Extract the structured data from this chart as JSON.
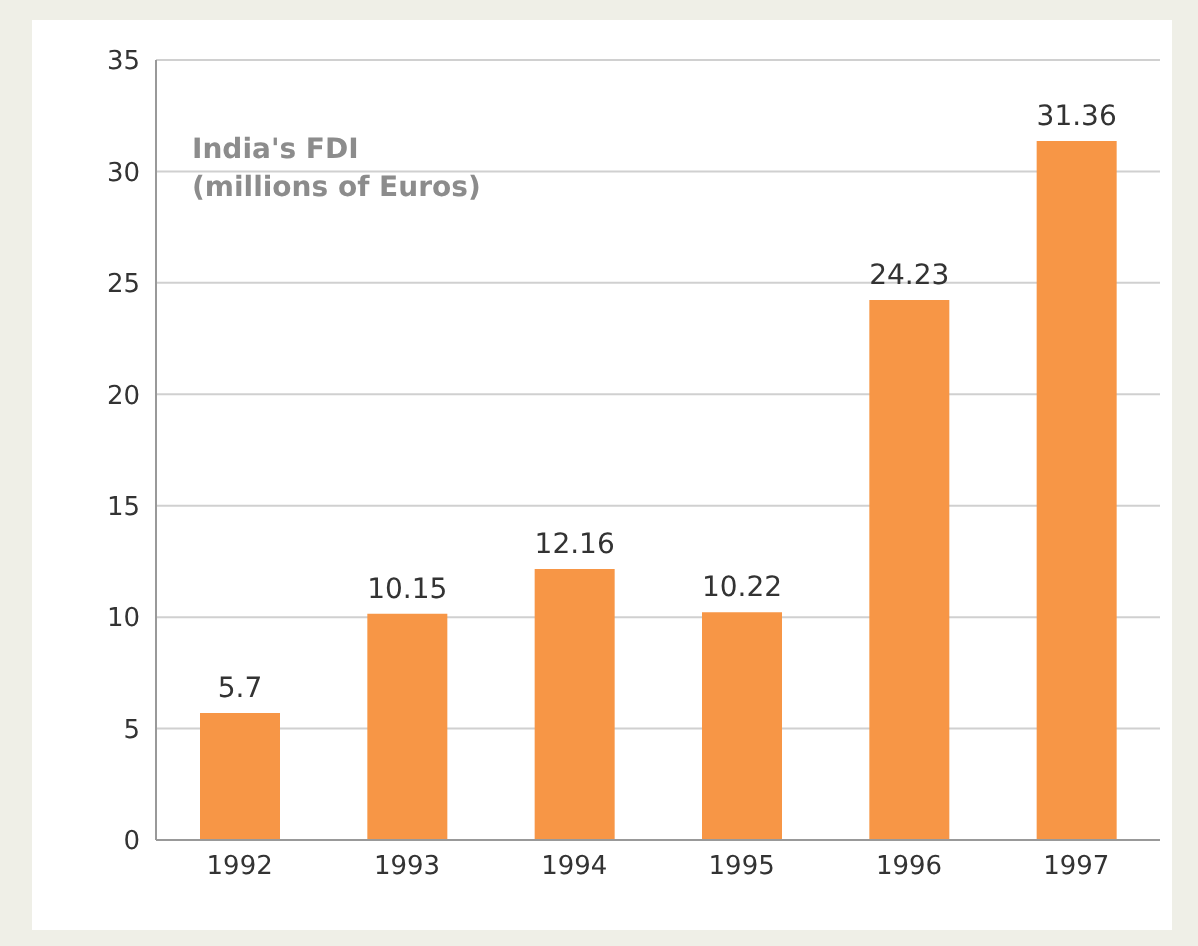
{
  "chart_data": {
    "type": "bar",
    "title": "India's FDI\n(millions of Euros)",
    "categories": [
      "1992",
      "1993",
      "1994",
      "1995",
      "1996",
      "1997"
    ],
    "values": [
      5.7,
      10.15,
      12.16,
      10.22,
      24.23,
      31.36
    ],
    "color": "#f79646",
    "ylim": [
      0,
      35
    ],
    "yticks": [
      0,
      5,
      10,
      15,
      20,
      25,
      30,
      35
    ],
    "grid": "y",
    "data_labels": true,
    "legend": false
  }
}
